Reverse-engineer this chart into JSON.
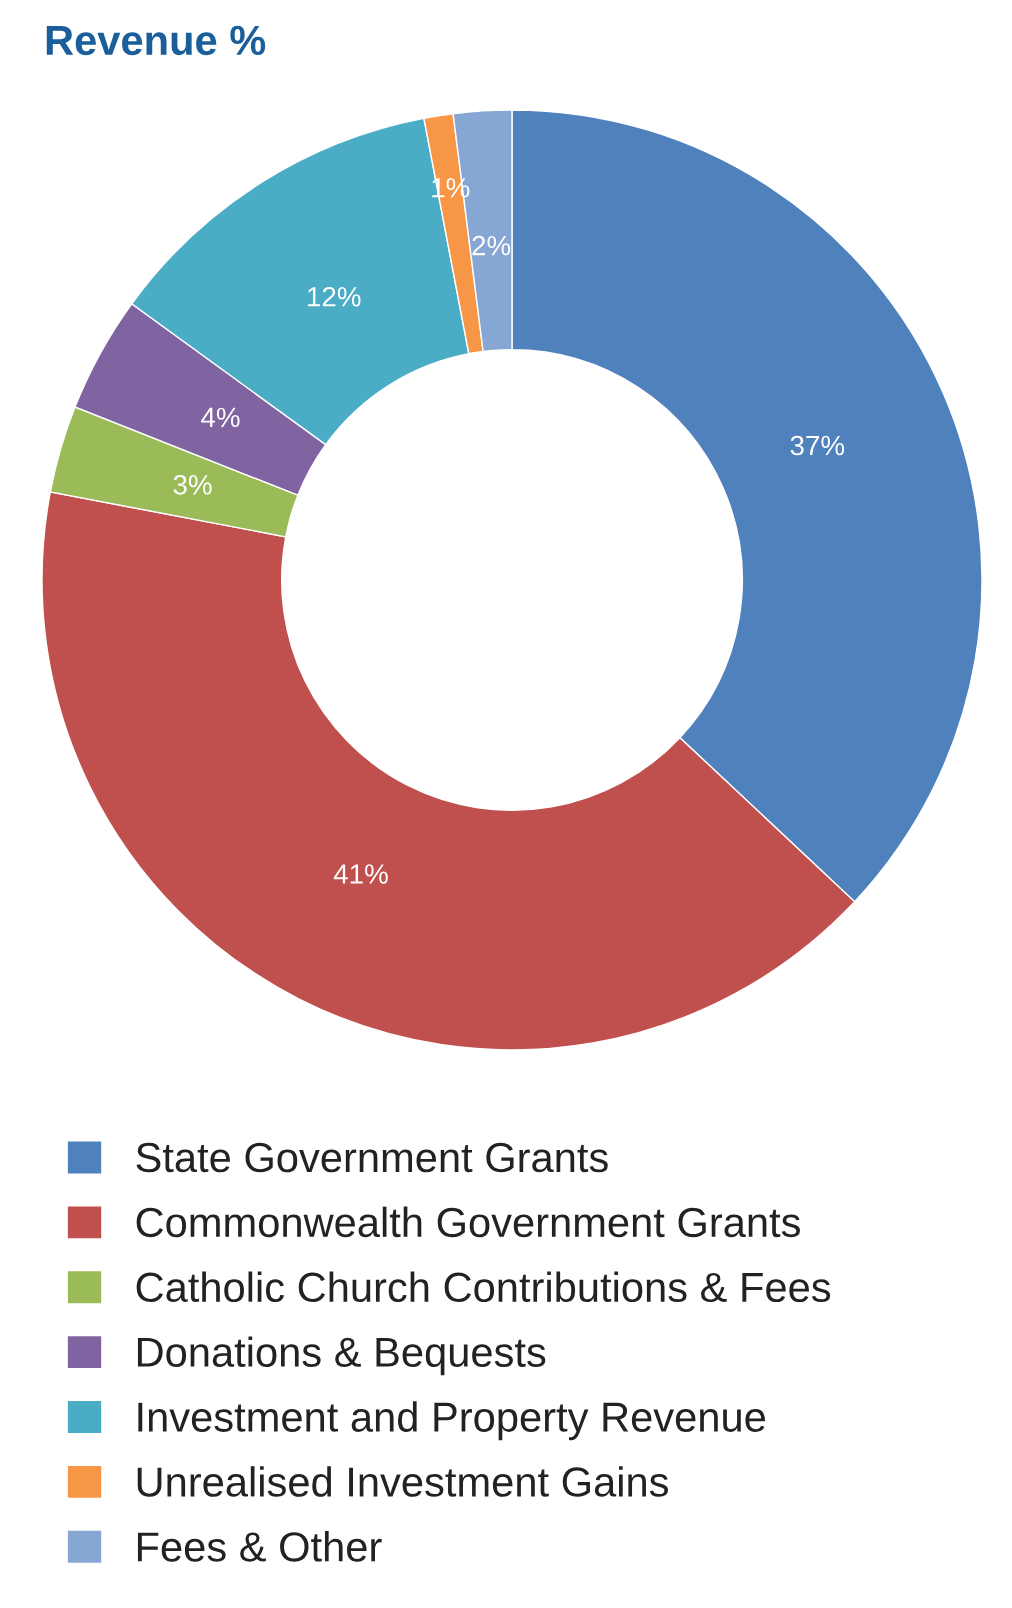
{
  "chart_data": {
    "type": "donut",
    "title": "Revenue %",
    "categories": [
      "State Government Grants",
      "Commonwealth Government Grants",
      "Catholic Church Contributions & Fees",
      "Donations & Bequests",
      "Investment and Property Revenue",
      "Unrealised Investment Gains",
      "Fees & Other"
    ],
    "values": [
      37,
      41,
      3,
      4,
      12,
      1,
      2
    ],
    "colors": [
      "#4f81bd",
      "#c0504d",
      "#9bbb59",
      "#8064a2",
      "#4bacc6",
      "#f79646",
      "#86a7d4"
    ],
    "value_labels": [
      "37%",
      "41%",
      "3%",
      "4%",
      "12%",
      "1%",
      "2%"
    ],
    "legend": "bottom"
  }
}
